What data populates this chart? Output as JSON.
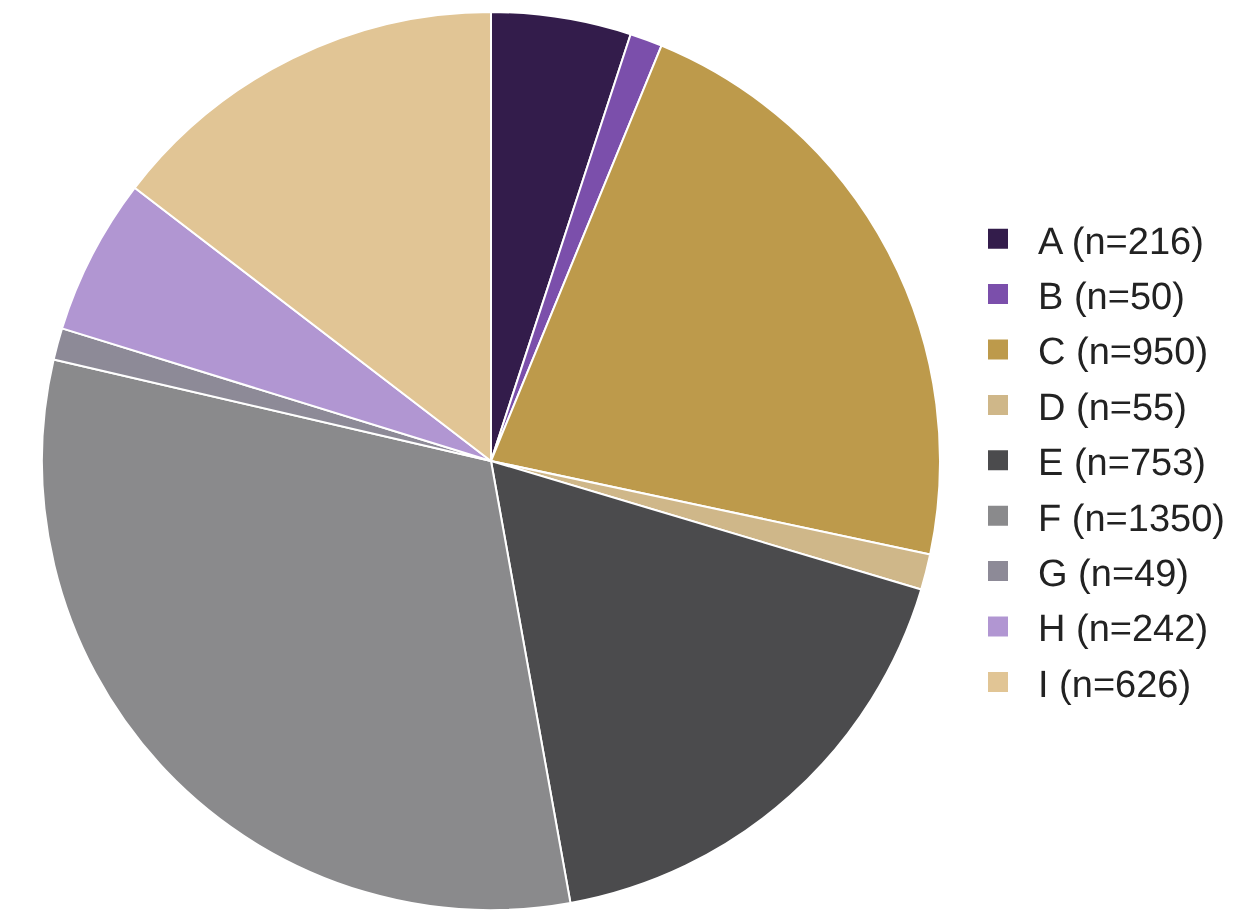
{
  "chart_data": {
    "type": "pie",
    "categories": [
      "A (n=216)",
      "B (n=50)",
      "C (n=950)",
      "D (n=55)",
      "E (n=753)",
      "F (n=1350)",
      "G (n=49)",
      "H (n=242)",
      "I (n=626)"
    ],
    "values": [
      216,
      50,
      950,
      55,
      753,
      1350,
      49,
      242,
      626
    ],
    "colors": [
      "#331c4b",
      "#7b4fab",
      "#bd9a4b",
      "#cfb789",
      "#4b4b4d",
      "#8a8a8c",
      "#8d8a97",
      "#b196d2",
      "#e1c595"
    ],
    "legend": "right"
  }
}
